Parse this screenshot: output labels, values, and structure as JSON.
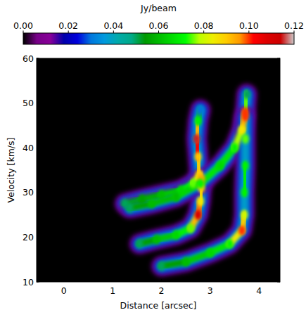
{
  "chart_data": {
    "type": "heatmap",
    "xlabel": "Distance [arcsec]",
    "ylabel": "Velocity [km/s]",
    "xlim": [
      -0.56,
      4.43
    ],
    "ylim": [
      10,
      60
    ],
    "xticks": [
      0,
      1,
      2,
      3,
      4
    ],
    "yticks": [
      10,
      20,
      30,
      40,
      50,
      60
    ],
    "colorbar": {
      "label": "Jy/beam",
      "range": [
        0,
        0.12
      ],
      "ticks": [
        {
          "value": 0,
          "label": "0.00"
        },
        {
          "value": 0.02,
          "label": "0.02"
        },
        {
          "value": 0.04,
          "label": "0.04"
        },
        {
          "value": 0.06,
          "label": "0.06"
        },
        {
          "value": 0.08,
          "label": "0.08"
        },
        {
          "value": 0.1,
          "label": "0.10"
        },
        {
          "value": 0.12,
          "label": "0.12"
        }
      ]
    },
    "series": [
      {
        "x": [
          1.25,
          1.6,
          2.0,
          2.4,
          2.65,
          2.78,
          2.75,
          2.72,
          2.75,
          2.8
        ],
        "values": [
          27.5,
          28.5,
          29.5,
          30.5,
          32,
          34,
          38,
          42,
          46,
          48.5
        ],
        "intensity": [
          0.05,
          0.055,
          0.06,
          0.065,
          0.075,
          0.09,
          0.09,
          0.115,
          0.07,
          0.03
        ]
      },
      {
        "x": [
          1.55,
          1.9,
          2.3,
          2.6,
          2.75,
          2.8,
          2.82,
          2.82
        ],
        "values": [
          18.5,
          19.5,
          20.5,
          22,
          25,
          28,
          31,
          33
        ],
        "intensity": [
          0.05,
          0.06,
          0.065,
          0.075,
          0.11,
          0.085,
          0.09,
          0.095
        ]
      },
      {
        "x": [
          1.35,
          1.8,
          2.3,
          2.8,
          3.2,
          3.5,
          3.65,
          3.72,
          3.75
        ],
        "values": [
          26.5,
          27.5,
          29,
          32,
          36,
          40,
          44,
          48,
          52
        ],
        "intensity": [
          0.05,
          0.06,
          0.06,
          0.07,
          0.065,
          0.07,
          0.085,
          0.1,
          0.05
        ]
      },
      {
        "x": [
          2.0,
          2.5,
          3.0,
          3.4,
          3.65,
          3.7,
          3.7,
          3.72,
          3.72,
          3.72
        ],
        "values": [
          13.5,
          14.5,
          16.5,
          18.5,
          21.5,
          25,
          30,
          36,
          42,
          47
        ],
        "intensity": [
          0.05,
          0.06,
          0.065,
          0.07,
          0.1,
          0.08,
          0.07,
          0.07,
          0.075,
          0.1
        ]
      }
    ]
  }
}
